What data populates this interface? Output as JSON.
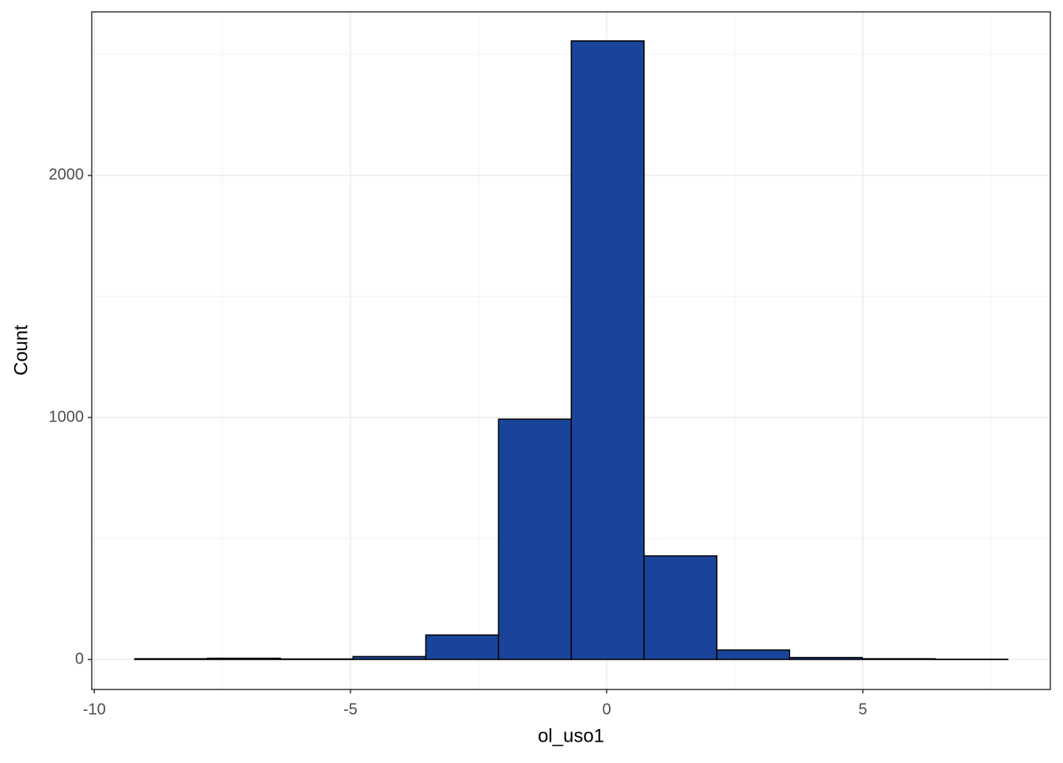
{
  "chart_data": {
    "type": "histogram",
    "x_label": "ol_uso1",
    "y_label": "Count",
    "bins": [
      -9.21,
      -7.79,
      -6.37,
      -4.95,
      -3.53,
      -2.11,
      -0.69,
      0.73,
      2.15,
      3.57,
      4.99,
      6.41,
      7.83
    ],
    "values": [
      3,
      5,
      2,
      12,
      101,
      993,
      2556,
      428,
      39,
      8,
      3,
      1
    ],
    "color": "#1a4499",
    "edge_color": "#000000",
    "xlim": [
      -10.05,
      8.66
    ],
    "ylim": [
      -124,
      2676
    ],
    "xticks": [
      -10,
      -5,
      0,
      5
    ],
    "yticks": [
      0,
      1000,
      2000
    ],
    "xminor": [
      -7.5,
      -2.5,
      2.5,
      7.5
    ],
    "yminor": [
      500,
      1500,
      2500
    ],
    "grid": true
  }
}
